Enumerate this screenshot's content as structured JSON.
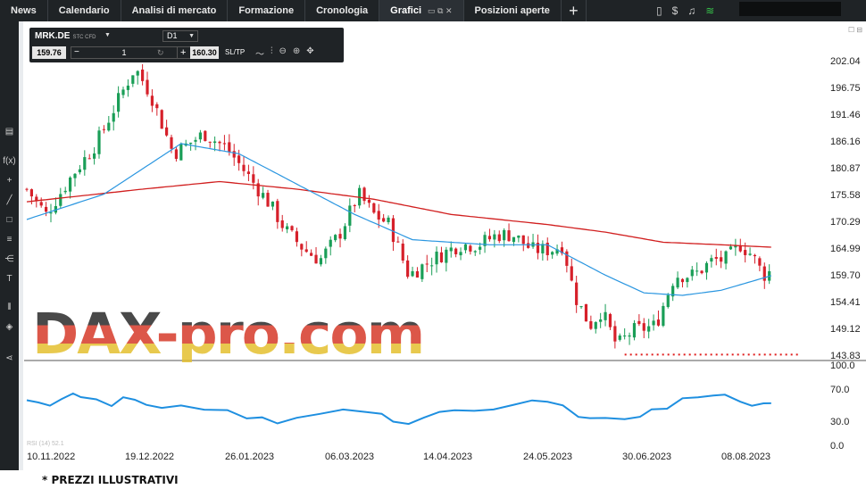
{
  "nav": {
    "tabs": [
      {
        "label": "News"
      },
      {
        "label": "Calendario"
      },
      {
        "label": "Analisi di mercato"
      },
      {
        "label": "Formazione"
      },
      {
        "label": "Cronologia"
      },
      {
        "label": "Grafici",
        "active": true
      },
      {
        "label": "Posizioni aperte"
      }
    ],
    "add_tab_icon": "plus-icon",
    "right_icons": [
      "layout-icon",
      "dollar-exchange-icon",
      "bell-icon",
      "wifi-icon"
    ]
  },
  "left_toolbar": {
    "icons": [
      "chart-type-icon",
      "function-icon",
      "crosshair-icon",
      "line-tool-icon",
      "rectangle-tool-icon",
      "fibonacci-icon",
      "pitchfork-icon",
      "text-tool-icon",
      "indicator-icon",
      "layers-icon",
      "share-icon"
    ],
    "fx_label": "f(x)",
    "text_label": "T"
  },
  "chart_toolbar": {
    "symbol": "MRK.DE",
    "symbol_type": "STC CFD",
    "timeframe": "D1",
    "sell_price": "159.76",
    "buy_price": "160.30",
    "quantity": "1",
    "minus_label": "−",
    "plus_label": "+",
    "sltp_label": "SL/TP"
  },
  "colors": {
    "up": "#1a9e57",
    "down": "#d6202a",
    "ma_slow": "#d11f1f",
    "ma_fast": "#2a96e0",
    "rsi": "#1e8fe0",
    "support": "#e01b1b"
  },
  "chart_data": {
    "type": "candlestick",
    "instrument": "MRK.DE",
    "timeframe": "D1",
    "price_ticks": [
      "202.04",
      "196.75",
      "191.46",
      "186.16",
      "180.87",
      "175.58",
      "170.29",
      "164.99",
      "159.70",
      "154.41",
      "149.12",
      "143.83"
    ],
    "date_ticks": [
      "10.11.2022",
      "19.12.2022",
      "26.01.2023",
      "06.03.2023",
      "14.04.2023",
      "24.05.2023",
      "30.06.2023",
      "08.08.2023"
    ],
    "ylim": [
      141,
      205
    ],
    "close_path": [
      [
        0,
        177
      ],
      [
        10,
        172
      ],
      [
        24,
        180
      ],
      [
        36,
        186
      ],
      [
        48,
        195
      ],
      [
        56,
        201
      ],
      [
        64,
        196
      ],
      [
        76,
        184
      ],
      [
        92,
        188
      ],
      [
        104,
        185
      ],
      [
        114,
        180
      ],
      [
        126,
        174
      ],
      [
        134,
        169
      ],
      [
        144,
        165
      ],
      [
        152,
        163
      ],
      [
        162,
        168
      ],
      [
        172,
        176
      ],
      [
        180,
        172
      ],
      [
        188,
        170
      ],
      [
        198,
        160
      ],
      [
        210,
        163
      ],
      [
        224,
        166
      ],
      [
        234,
        166
      ],
      [
        244,
        168
      ],
      [
        252,
        168
      ],
      [
        262,
        165
      ],
      [
        272,
        165
      ],
      [
        278,
        166
      ],
      [
        284,
        156
      ],
      [
        292,
        150
      ],
      [
        298,
        153
      ],
      [
        306,
        146
      ],
      [
        314,
        149
      ],
      [
        326,
        150
      ],
      [
        336,
        160
      ],
      [
        346,
        160
      ],
      [
        356,
        163
      ],
      [
        362,
        163
      ],
      [
        370,
        166
      ],
      [
        376,
        164
      ],
      [
        382,
        160
      ],
      [
        387,
        161
      ]
    ],
    "ma_fast": [
      [
        0,
        171
      ],
      [
        40,
        176
      ],
      [
        80,
        186
      ],
      [
        110,
        184
      ],
      [
        140,
        178
      ],
      [
        170,
        172
      ],
      [
        200,
        167
      ],
      [
        240,
        166
      ],
      [
        270,
        166
      ],
      [
        300,
        160
      ],
      [
        320,
        156.5
      ],
      [
        340,
        156
      ],
      [
        360,
        157
      ],
      [
        387,
        160
      ]
    ],
    "ma_slow": [
      [
        0,
        174.5
      ],
      [
        60,
        177
      ],
      [
        100,
        178.5
      ],
      [
        140,
        177
      ],
      [
        180,
        175
      ],
      [
        220,
        172
      ],
      [
        270,
        170
      ],
      [
        300,
        168.5
      ],
      [
        330,
        166.5
      ],
      [
        360,
        166
      ],
      [
        387,
        165.5
      ]
    ],
    "support_level": 144.3,
    "support_x_range": [
      310,
      387
    ],
    "rsi": {
      "levels": [
        "100.0",
        "70.0",
        "30.0",
        "0.0"
      ],
      "caption": "RSI (14) 52.1",
      "values": [
        [
          0,
          58
        ],
        [
          6,
          56
        ],
        [
          12,
          52
        ],
        [
          18,
          60
        ],
        [
          24,
          66
        ],
        [
          28,
          62
        ],
        [
          36,
          58
        ],
        [
          44,
          52
        ],
        [
          50,
          62
        ],
        [
          56,
          56
        ],
        [
          62,
          52
        ],
        [
          70,
          48
        ],
        [
          80,
          50
        ],
        [
          92,
          44
        ],
        [
          104,
          46
        ],
        [
          114,
          36
        ],
        [
          122,
          34
        ],
        [
          130,
          30
        ],
        [
          140,
          34
        ],
        [
          152,
          42
        ],
        [
          164,
          46
        ],
        [
          176,
          44
        ],
        [
          184,
          40
        ],
        [
          190,
          30
        ],
        [
          198,
          28
        ],
        [
          206,
          34
        ],
        [
          214,
          44
        ],
        [
          222,
          46
        ],
        [
          232,
          44
        ],
        [
          242,
          46
        ],
        [
          252,
          50
        ],
        [
          262,
          56
        ],
        [
          270,
          54
        ],
        [
          278,
          50
        ],
        [
          286,
          38
        ],
        [
          292,
          34
        ],
        [
          300,
          36
        ],
        [
          310,
          32
        ],
        [
          318,
          36
        ],
        [
          324,
          44
        ],
        [
          332,
          46
        ],
        [
          340,
          58
        ],
        [
          348,
          62
        ],
        [
          356,
          62
        ],
        [
          362,
          66
        ],
        [
          370,
          56
        ],
        [
          376,
          50
        ],
        [
          382,
          54
        ],
        [
          386,
          52
        ]
      ]
    }
  },
  "watermark": "DAX-pro.com",
  "footer_note": "* PREZZI ILLUSTRATIVI"
}
